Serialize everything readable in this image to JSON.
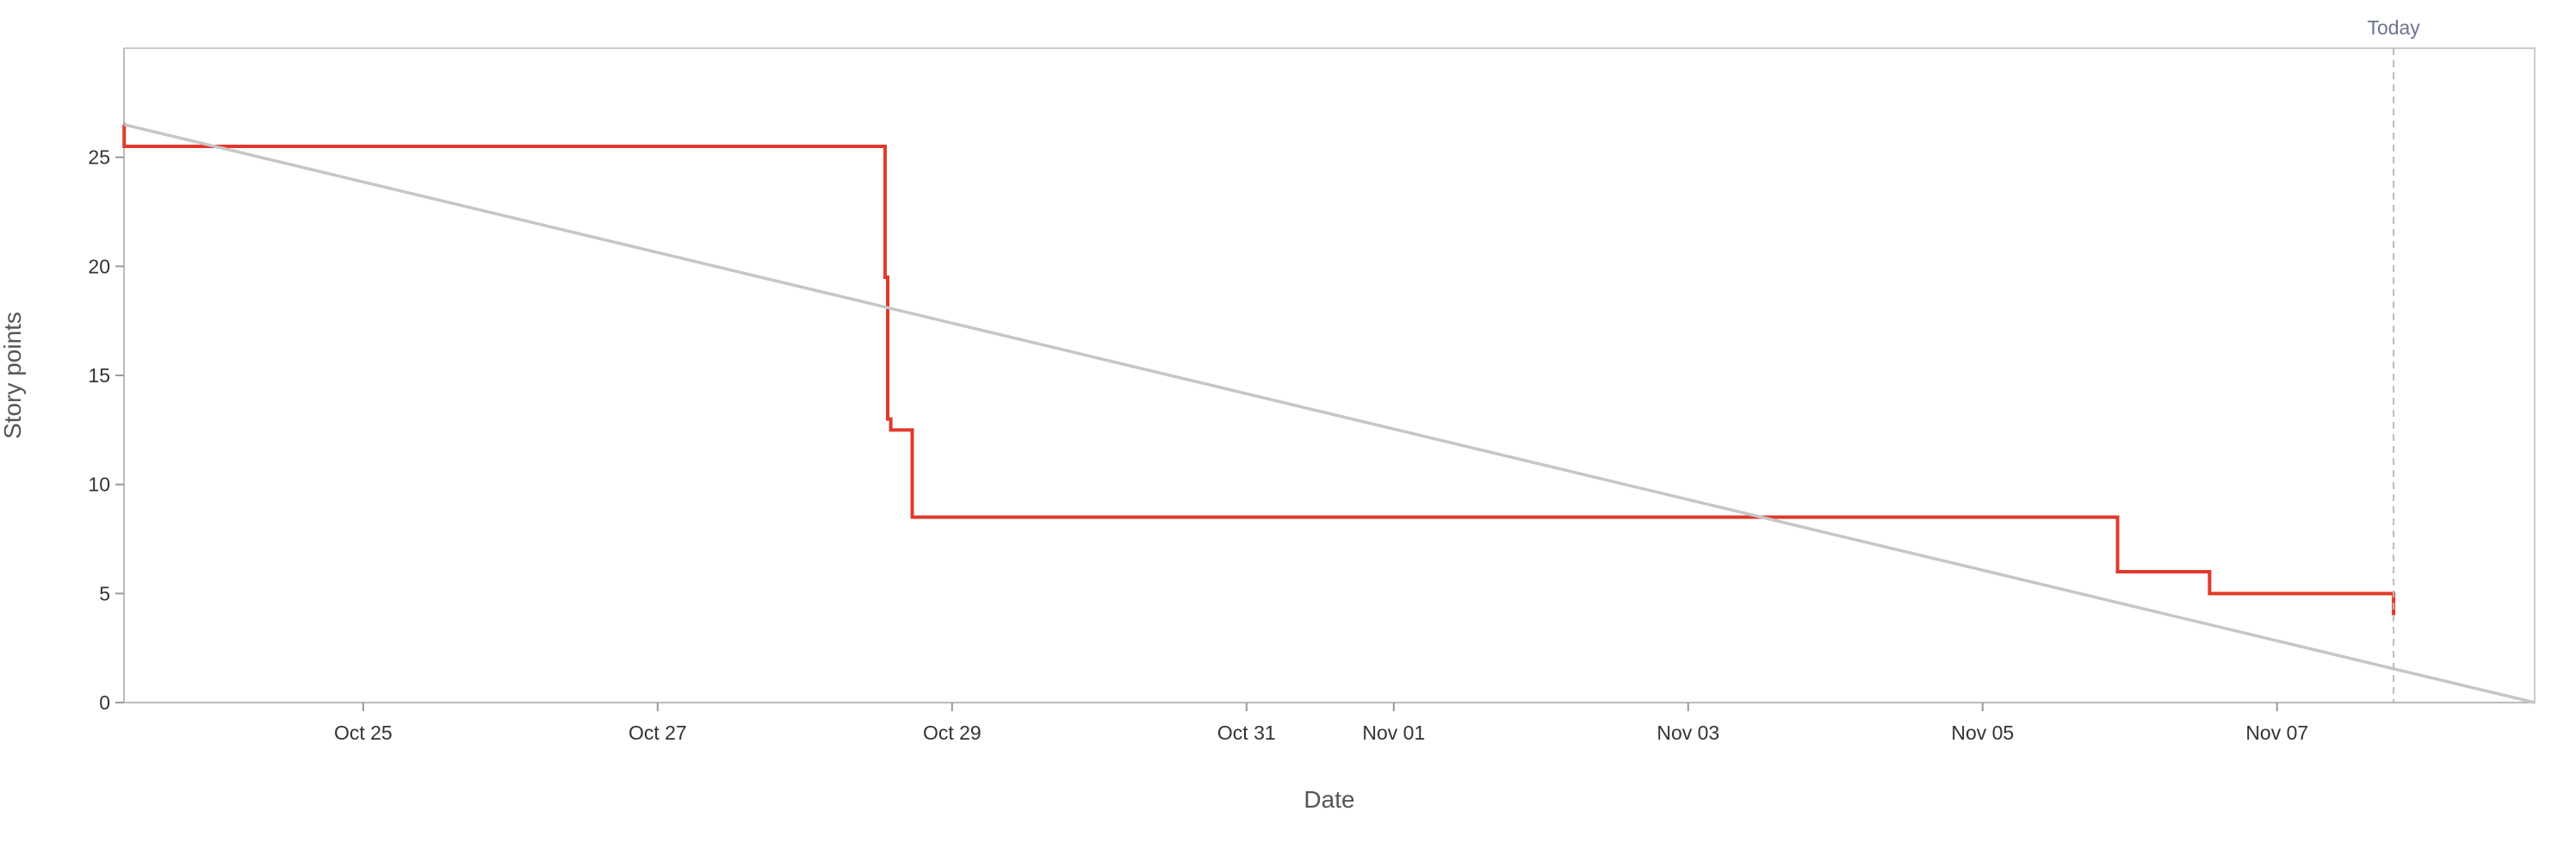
{
  "chart_data": {
    "type": "line",
    "title": "",
    "xlabel": "Date",
    "ylabel": "Story points",
    "xlim": [
      "2025-10-23T09:00",
      "2025-11-08T18:00"
    ],
    "ylim": [
      0,
      30
    ],
    "y_ticks": [
      0,
      5,
      10,
      15,
      20,
      25
    ],
    "x_ticks": [
      {
        "date": "2025-10-25",
        "label": "Oct 25"
      },
      {
        "date": "2025-10-27",
        "label": "Oct 27"
      },
      {
        "date": "2025-10-29",
        "label": "Oct 29"
      },
      {
        "date": "2025-10-31",
        "label": "Oct 31"
      },
      {
        "date": "2025-11-01",
        "label": "Nov 01"
      },
      {
        "date": "2025-11-03",
        "label": "Nov 03"
      },
      {
        "date": "2025-11-05",
        "label": "Nov 05"
      },
      {
        "date": "2025-11-07",
        "label": "Nov 07"
      }
    ],
    "grid": false,
    "series": [
      {
        "color": "#e0392b",
        "step": true,
        "points": [
          {
            "x": "2025-10-23T09:00",
            "y": 26.5
          },
          {
            "x": "2025-10-23T09:02",
            "y": 25.5
          },
          {
            "x": "2025-10-28T13:00",
            "y": 25.5
          },
          {
            "x": "2025-10-28T13:05",
            "y": 19.5
          },
          {
            "x": "2025-10-28T13:30",
            "y": 13.0
          },
          {
            "x": "2025-10-28T14:00",
            "y": 12.5
          },
          {
            "x": "2025-10-28T17:30",
            "y": 8.5
          },
          {
            "x": "2025-11-05T22:00",
            "y": 6.0
          },
          {
            "x": "2025-11-06T13:00",
            "y": 5.0
          },
          {
            "x": "2025-11-07T19:00",
            "y": 4.0
          }
        ]
      },
      {
        "color": "#c6c6c6",
        "step": false,
        "points": [
          {
            "x": "2025-10-23T09:00",
            "y": 26.5
          },
          {
            "x": "2025-11-08T18:00",
            "y": 0
          }
        ]
      }
    ],
    "markers": [
      {
        "x": "2025-11-07T19:00",
        "label": "Today",
        "color": "#6b7394"
      }
    ]
  }
}
